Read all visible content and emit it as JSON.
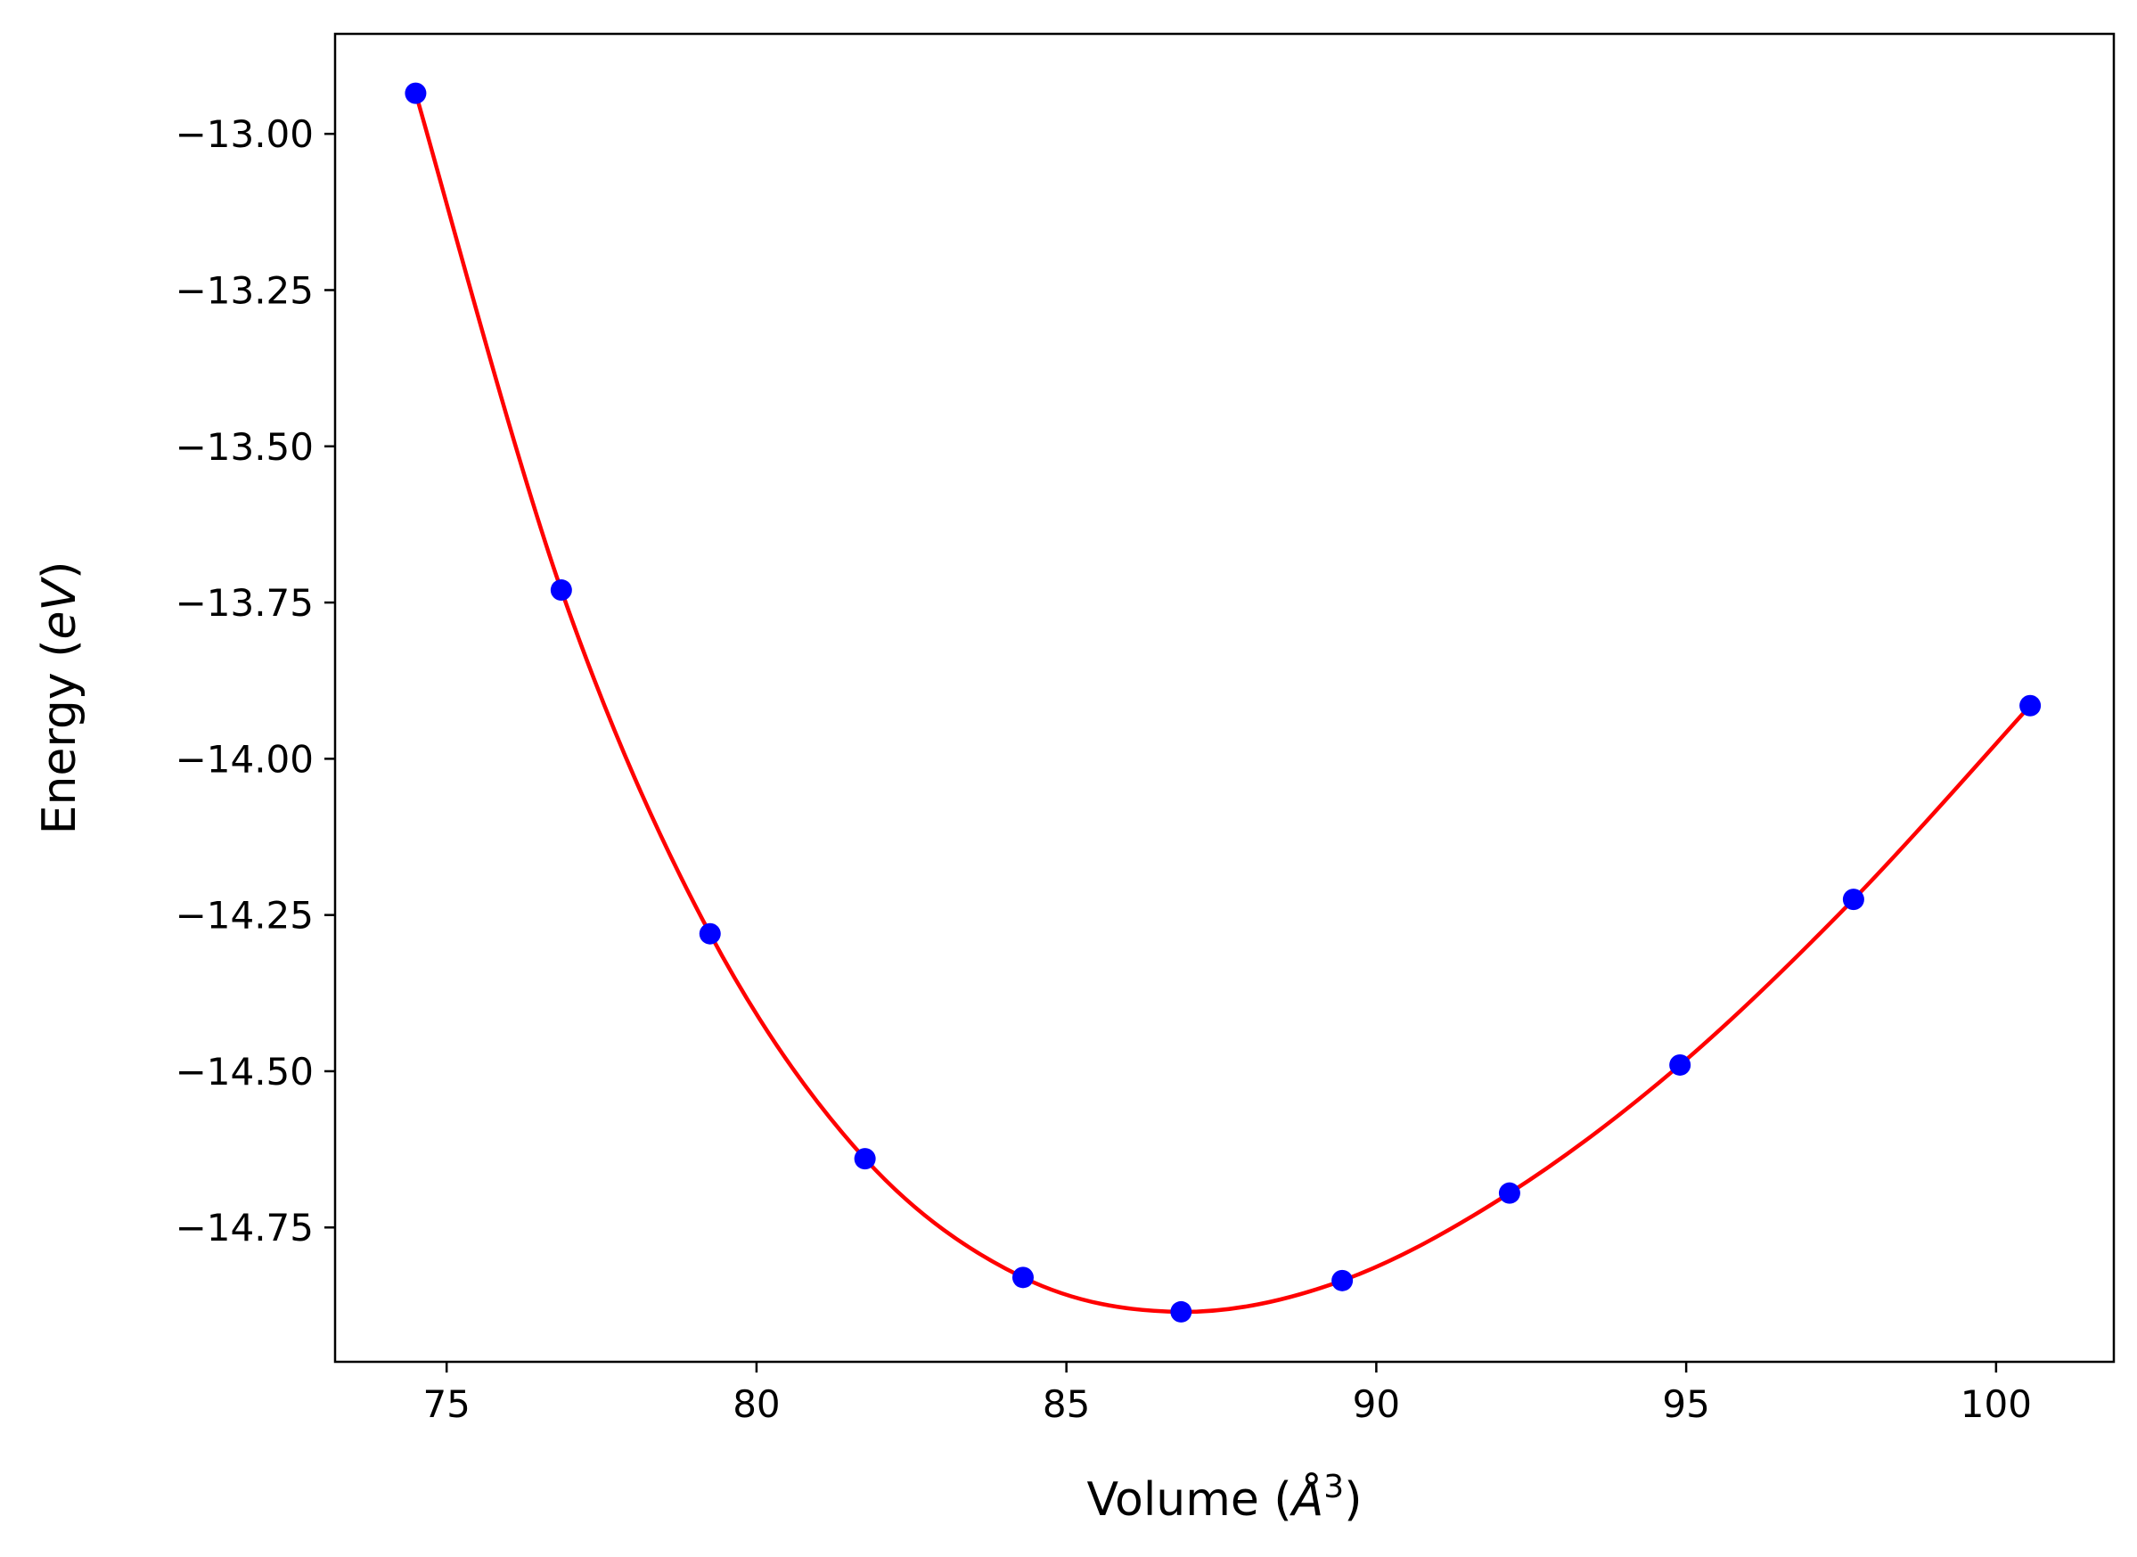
{
  "chart_data": {
    "type": "scatter",
    "title": "",
    "xlabel": "Volume (",
    "xlabel_math": "Å",
    "xlabel_sup": "3",
    "xlabel_close": ")",
    "ylabel": "Energy (",
    "ylabel_math": "eV",
    "ylabel_close": ")",
    "xlim": [
      73.2,
      101.9
    ],
    "ylim": [
      -14.965,
      -12.84
    ],
    "xticks": [
      75,
      80,
      85,
      90,
      95,
      100
    ],
    "xtick_labels": [
      "75",
      "80",
      "85",
      "90",
      "95",
      "100"
    ],
    "yticks": [
      -13.0,
      -13.25,
      -13.5,
      -13.75,
      -14.0,
      -14.25,
      -14.5,
      -14.75
    ],
    "ytick_labels": [
      "−13.00",
      "−13.25",
      "−13.50",
      "−13.75",
      "−14.00",
      "−14.25",
      "−14.50",
      "−14.75"
    ],
    "grid": false,
    "series": [
      {
        "kind": "scatter",
        "color": "#0000ff",
        "x": [
          74.5,
          76.85,
          79.25,
          81.75,
          84.3,
          86.85,
          89.45,
          92.15,
          94.9,
          97.7,
          100.55
        ],
        "y": [
          -12.935,
          -13.73,
          -14.28,
          -14.64,
          -14.83,
          -14.885,
          -14.835,
          -14.695,
          -14.49,
          -14.225,
          -13.915
        ]
      },
      {
        "kind": "line",
        "color": "#ff0000",
        "x": [
          74.5,
          76.85,
          79.25,
          81.75,
          84.3,
          86.85,
          89.45,
          92.15,
          94.9,
          97.7,
          100.55
        ],
        "y": [
          -12.935,
          -13.73,
          -14.28,
          -14.64,
          -14.83,
          -14.885,
          -14.835,
          -14.695,
          -14.49,
          -14.225,
          -13.915
        ]
      }
    ]
  }
}
